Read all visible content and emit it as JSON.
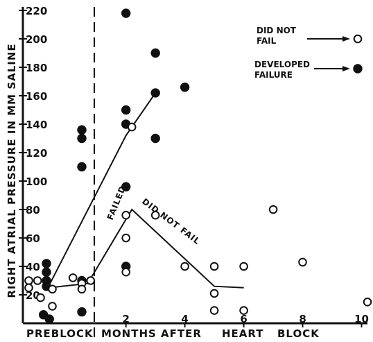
{
  "chart_data": {
    "type": "scatter",
    "title": "",
    "ylabel": "RIGHT ATRIAL PRESSURE IN MM SALINE",
    "xlabel_parts": [
      "PREBLOCK",
      "MONTHS AFTER",
      "HEART",
      "BLOCK"
    ],
    "xlim": [
      -1.5,
      10.2
    ],
    "ylim": [
      0,
      220
    ],
    "y_ticks": [
      20,
      40,
      60,
      80,
      100,
      120,
      140,
      160,
      180,
      200,
      220
    ],
    "y_tick_labels": [
      "20",
      "40",
      "60",
      "80",
      "100",
      "120",
      "140",
      "160",
      "180",
      "200",
      "220"
    ],
    "x_ticks": [
      2,
      4,
      6,
      8,
      10
    ],
    "x_tick_labels": [
      "2",
      "4",
      "6",
      "8",
      "10"
    ],
    "grid": false,
    "legend_position": "top-right",
    "series": [
      {
        "name": "DEVELOPED FAILURE",
        "marker": "filled-circle",
        "points": [
          [
            -0.7,
            42
          ],
          [
            -0.7,
            36
          ],
          [
            -0.7,
            30
          ],
          [
            -0.7,
            26
          ],
          [
            -0.8,
            6
          ],
          [
            -0.6,
            3
          ],
          [
            0.5,
            136
          ],
          [
            0.5,
            130
          ],
          [
            0.5,
            110
          ],
          [
            0.5,
            30
          ],
          [
            0.5,
            8
          ],
          [
            2.0,
            218
          ],
          [
            2.0,
            150
          ],
          [
            2.0,
            140
          ],
          [
            2.0,
            96
          ],
          [
            2.0,
            40
          ],
          [
            3.0,
            190
          ],
          [
            3.0,
            162
          ],
          [
            3.0,
            130
          ],
          [
            4.0,
            166
          ]
        ]
      },
      {
        "name": "DID NOT FAIL",
        "marker": "open-circle",
        "points": [
          [
            -1.3,
            30
          ],
          [
            -1.3,
            25
          ],
          [
            -1.0,
            30
          ],
          [
            -0.9,
            18
          ],
          [
            -0.5,
            24
          ],
          [
            -0.5,
            12
          ],
          [
            0.2,
            32
          ],
          [
            0.5,
            28
          ],
          [
            0.5,
            24
          ],
          [
            0.8,
            30
          ],
          [
            2.0,
            76
          ],
          [
            2.0,
            60
          ],
          [
            2.0,
            36
          ],
          [
            2.2,
            138
          ],
          [
            3.0,
            76
          ],
          [
            4.0,
            40
          ],
          [
            5.0,
            40
          ],
          [
            5.0,
            21
          ],
          [
            5.0,
            9
          ],
          [
            6.0,
            40
          ],
          [
            6.0,
            9
          ],
          [
            7.0,
            80
          ],
          [
            8.0,
            43
          ],
          [
            10.2,
            15
          ]
        ]
      }
    ],
    "trend_lines": [
      {
        "name": "FAILED",
        "points": [
          [
            -0.6,
            27
          ],
          [
            2.0,
            132
          ],
          [
            3.0,
            162
          ]
        ]
      },
      {
        "name": "DID NOT FAIL",
        "points": [
          [
            -0.6,
            25
          ],
          [
            0.7,
            28
          ],
          [
            2.2,
            80
          ],
          [
            5.0,
            26
          ],
          [
            6.0,
            25
          ]
        ]
      }
    ],
    "legend": [
      {
        "label_lines": [
          "DID NOT",
          "FAIL"
        ],
        "marker": "open-circle"
      },
      {
        "label_lines": [
          "DEVELOPED",
          "FAILURE"
        ],
        "marker": "filled-circle"
      }
    ]
  }
}
